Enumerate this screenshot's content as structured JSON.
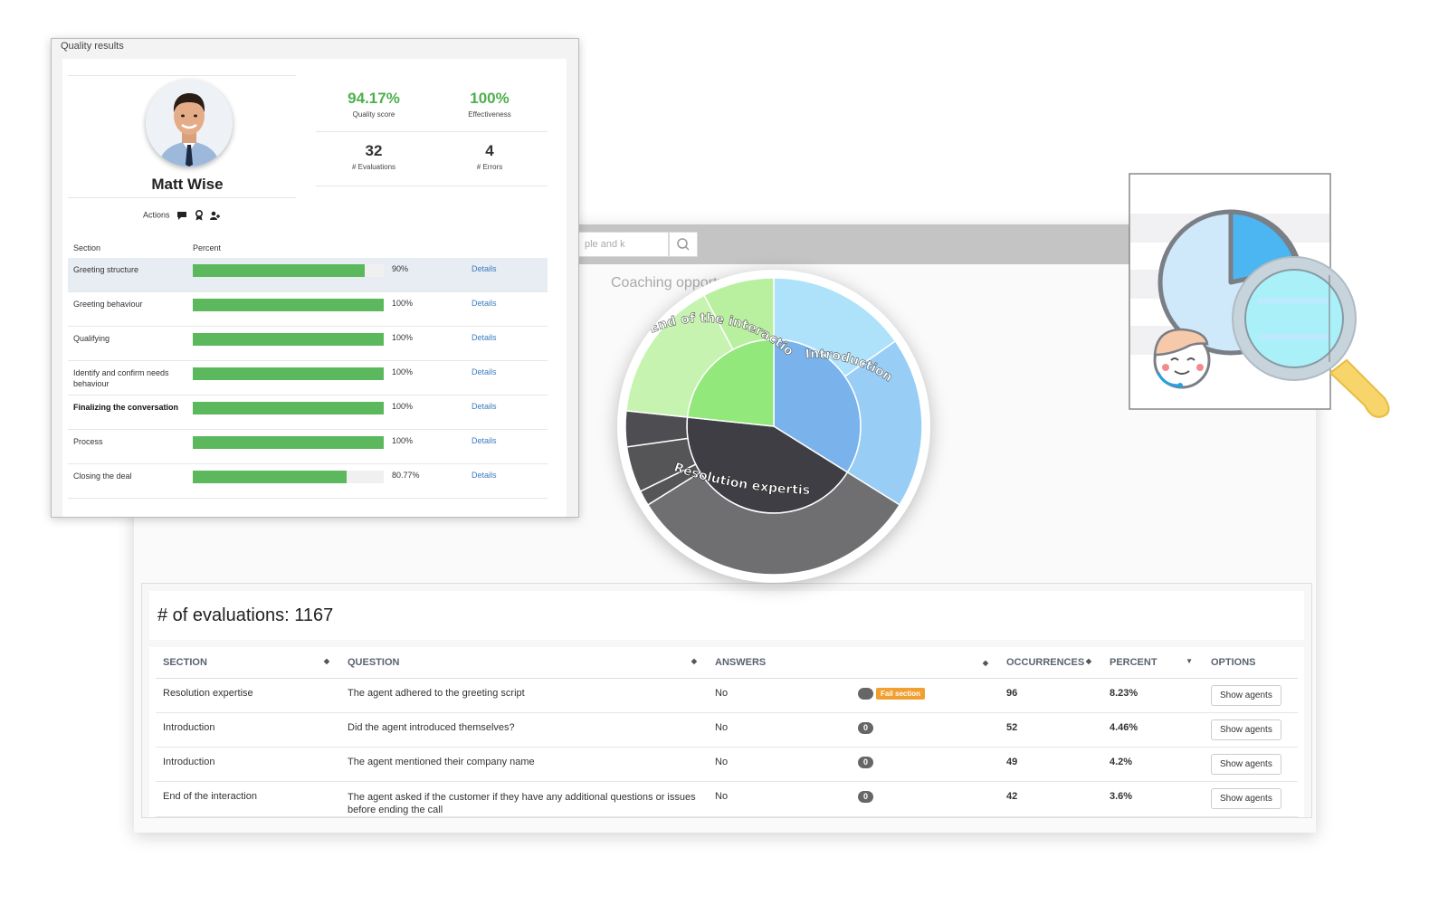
{
  "background": {
    "search_placeholder": "ple and k",
    "heading": "Coaching opportunities by section"
  },
  "quality": {
    "title": "Quality results",
    "agent_name": "Matt Wise",
    "stats": {
      "quality_score": {
        "value": "94.17%",
        "label": "Quality score"
      },
      "effectiveness": {
        "value": "100%",
        "label": "Effectiveness"
      },
      "evaluations": {
        "value": "32",
        "label": "# Evaluations"
      },
      "errors": {
        "value": "4",
        "label": "# Errors"
      }
    },
    "actions_label": "Actions",
    "columns": {
      "section": "Section",
      "percent": "Percent"
    },
    "sections": [
      {
        "name": "Greeting structure",
        "percent_label": "90%",
        "percent": 90,
        "details": "Details",
        "highlight": true,
        "bold": false
      },
      {
        "name": "Greeting behaviour",
        "percent_label": "100%",
        "percent": 100,
        "details": "Details",
        "highlight": false,
        "bold": false
      },
      {
        "name": "Qualifying",
        "percent_label": "100%",
        "percent": 100,
        "details": "Details",
        "highlight": false,
        "bold": false
      },
      {
        "name": "Identify and confirm needs behaviour",
        "percent_label": "100%",
        "percent": 100,
        "details": "Details",
        "highlight": false,
        "bold": false
      },
      {
        "name": "Finalizing the conversation",
        "percent_label": "100%",
        "percent": 100,
        "details": "Details",
        "highlight": false,
        "bold": true
      },
      {
        "name": "Process",
        "percent_label": "100%",
        "percent": 100,
        "details": "Details",
        "highlight": false,
        "bold": false
      },
      {
        "name": "Closing the deal",
        "percent_label": "80.77%",
        "percent": 80.77,
        "details": "Details",
        "highlight": false,
        "bold": false
      }
    ]
  },
  "sunburst": {
    "labels": {
      "end": "End of the interaction",
      "intro": "Introduction",
      "resolution": "Resolution expertise"
    },
    "colors": {
      "intro_inner": "#7ab3ec",
      "intro_outer": [
        "#aee1fa",
        "#98cdf6"
      ],
      "end_inner": "#92e87a",
      "end_outer": [
        "#b8f09f",
        "#c6f4b0"
      ],
      "res_inner": "#3e3e44",
      "res_outer": [
        "#6f6f72",
        "#4d4d52",
        "#555558"
      ]
    }
  },
  "evaluations": {
    "title": "# of evaluations: 1167",
    "columns": {
      "section": "SECTION",
      "question": "QUESTION",
      "answers": "ANSWERS",
      "occurrences": "OCCURRENCES",
      "percent": "PERCENT",
      "options": "OPTIONS"
    },
    "rows": [
      {
        "section": "Resolution expertise",
        "question": "The agent adhered to the greeting script",
        "answer": "No",
        "badge": "",
        "fail_label": "Fail section",
        "occurrences": "96",
        "percent": "8.23%",
        "button": "Show agents"
      },
      {
        "section": "Introduction",
        "question": "Did the agent introduced themselves?",
        "answer": "No",
        "badge": "0",
        "fail_label": "",
        "occurrences": "52",
        "percent": "4.46%",
        "button": "Show agents"
      },
      {
        "section": "Introduction",
        "question": "The agent mentioned their company name",
        "answer": "No",
        "badge": "0",
        "fail_label": "",
        "occurrences": "49",
        "percent": "4.2%",
        "button": "Show agents"
      },
      {
        "section": "End of the interaction",
        "question": "The agent asked if the customer if they have any additional questions or issues before ending the call",
        "answer": "No",
        "badge": "0",
        "fail_label": "",
        "occurrences": "42",
        "percent": "3.6%",
        "button": "Show agents"
      }
    ]
  }
}
